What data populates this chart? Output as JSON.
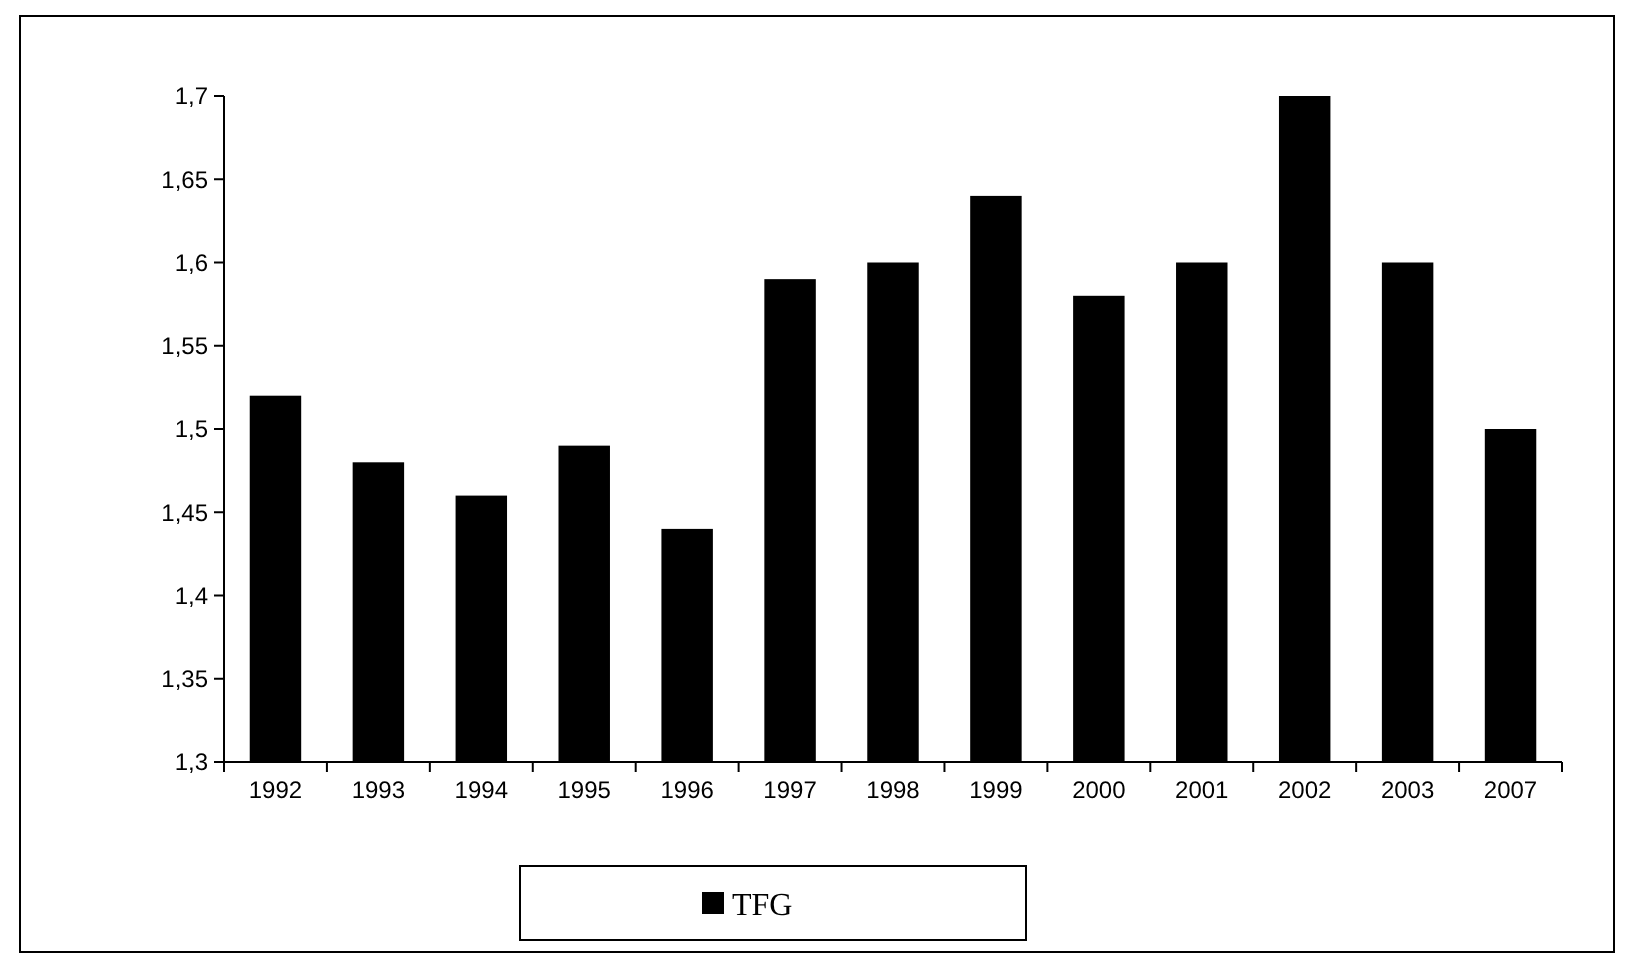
{
  "chart_data": {
    "type": "bar",
    "categories": [
      "1992",
      "1993",
      "1994",
      "1995",
      "1996",
      "1997",
      "1998",
      "1999",
      "2000",
      "2001",
      "2002",
      "2003",
      "2007"
    ],
    "series": [
      {
        "name": "TFG",
        "color": "#000000",
        "values": [
          1.52,
          1.48,
          1.46,
          1.49,
          1.44,
          1.59,
          1.6,
          1.64,
          1.58,
          1.6,
          1.7,
          1.6,
          1.5
        ]
      }
    ],
    "ylim": [
      1.3,
      1.7
    ],
    "yticks": [
      {
        "value": 1.3,
        "label": "1,3"
      },
      {
        "value": 1.35,
        "label": "1,35"
      },
      {
        "value": 1.4,
        "label": "1,4"
      },
      {
        "value": 1.45,
        "label": "1,45"
      },
      {
        "value": 1.5,
        "label": "1,5"
      },
      {
        "value": 1.55,
        "label": "1,55"
      },
      {
        "value": 1.6,
        "label": "1,6"
      },
      {
        "value": 1.65,
        "label": "1,65"
      },
      {
        "value": 1.7,
        "label": "1,7"
      }
    ],
    "grid": false,
    "legend": "bottom"
  }
}
